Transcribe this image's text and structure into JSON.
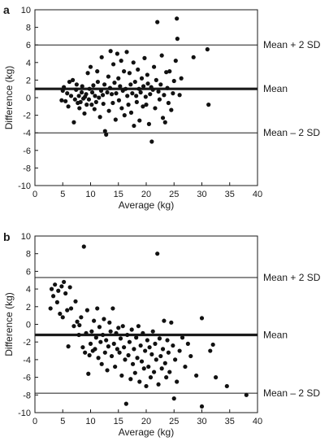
{
  "chart_data": [
    {
      "type": "scatter",
      "panel_label": "a",
      "xlabel": "Average (kg)",
      "ylabel": "Difference (kg)",
      "xlim": [
        0,
        40
      ],
      "ylim": [
        -10,
        10
      ],
      "xticks": [
        0,
        5,
        10,
        15,
        20,
        25,
        30,
        35,
        40
      ],
      "yticks": [
        -10,
        -8,
        -6,
        -4,
        -2,
        0,
        2,
        4,
        6,
        8,
        10
      ],
      "reference_lines": [
        {
          "label": "Mean + 2 SD",
          "y": 6.0,
          "style": "thin"
        },
        {
          "label": "Mean",
          "y": 1.0,
          "style": "thick"
        },
        {
          "label": "Mean – 2 SD",
          "y": -4.0,
          "style": "thin"
        }
      ],
      "points": [
        [
          4.8,
          -0.3
        ],
        [
          5.0,
          0.8
        ],
        [
          5.2,
          1.2
        ],
        [
          5.5,
          -0.4
        ],
        [
          5.8,
          0.5
        ],
        [
          6.0,
          -1.0
        ],
        [
          6.2,
          1.8
        ],
        [
          6.5,
          0.2
        ],
        [
          6.8,
          2.0
        ],
        [
          7.0,
          -2.8
        ],
        [
          7.2,
          -0.2
        ],
        [
          7.4,
          0.9
        ],
        [
          7.5,
          1.5
        ],
        [
          7.7,
          -0.6
        ],
        [
          7.9,
          0.2
        ],
        [
          8.0,
          -1.2
        ],
        [
          8.2,
          -0.5
        ],
        [
          8.4,
          0.6
        ],
        [
          8.5,
          1.3
        ],
        [
          8.7,
          -0.1
        ],
        [
          8.9,
          -1.8
        ],
        [
          9.0,
          0.1
        ],
        [
          9.2,
          0.4
        ],
        [
          9.3,
          -0.8
        ],
        [
          9.5,
          2.8
        ],
        [
          9.7,
          -0.2
        ],
        [
          9.8,
          1.0
        ],
        [
          10.0,
          3.5
        ],
        [
          10.2,
          -0.8
        ],
        [
          10.3,
          0.6
        ],
        [
          10.5,
          1.4
        ],
        [
          10.7,
          -1.3
        ],
        [
          10.8,
          0.2
        ],
        [
          11.0,
          -0.5
        ],
        [
          11.2,
          3.0
        ],
        [
          11.3,
          1.8
        ],
        [
          11.5,
          0.0
        ],
        [
          11.7,
          -2.2
        ],
        [
          11.9,
          0.8
        ],
        [
          12.0,
          4.6
        ],
        [
          12.2,
          0.3
        ],
        [
          12.3,
          -0.7
        ],
        [
          12.5,
          1.5
        ],
        [
          12.6,
          -3.8
        ],
        [
          12.8,
          -4.2
        ],
        [
          13.0,
          0.6
        ],
        [
          13.2,
          2.4
        ],
        [
          13.3,
          -1.5
        ],
        [
          13.5,
          1.1
        ],
        [
          13.6,
          5.3
        ],
        [
          13.8,
          0.4
        ],
        [
          14.0,
          -0.6
        ],
        [
          14.1,
          3.8
        ],
        [
          14.3,
          1.7
        ],
        [
          14.5,
          -2.5
        ],
        [
          14.6,
          0.5
        ],
        [
          14.8,
          5.0
        ],
        [
          15.0,
          2.2
        ],
        [
          15.1,
          -0.3
        ],
        [
          15.3,
          1.3
        ],
        [
          15.5,
          4.2
        ],
        [
          15.6,
          -1.2
        ],
        [
          15.8,
          0.8
        ],
        [
          16.0,
          3.0
        ],
        [
          16.1,
          -2.0
        ],
        [
          16.3,
          1.0
        ],
        [
          16.5,
          5.2
        ],
        [
          16.6,
          0.2
        ],
        [
          16.8,
          -0.8
        ],
        [
          17.0,
          2.8
        ],
        [
          17.2,
          1.5
        ],
        [
          17.3,
          -1.7
        ],
        [
          17.5,
          0.5
        ],
        [
          17.7,
          4.0
        ],
        [
          17.8,
          -3.2
        ],
        [
          18.0,
          1.8
        ],
        [
          18.2,
          0.2
        ],
        [
          18.3,
          -0.5
        ],
        [
          18.5,
          3.2
        ],
        [
          18.7,
          1.0
        ],
        [
          18.8,
          -2.6
        ],
        [
          19.0,
          0.6
        ],
        [
          19.2,
          2.2
        ],
        [
          19.4,
          -1.0
        ],
        [
          19.5,
          1.3
        ],
        [
          19.7,
          4.5
        ],
        [
          19.9,
          0.1
        ],
        [
          20.0,
          -0.8
        ],
        [
          20.2,
          2.6
        ],
        [
          20.3,
          1.6
        ],
        [
          20.5,
          -3.0
        ],
        [
          20.7,
          0.4
        ],
        [
          20.9,
          1.2
        ],
        [
          21.0,
          -5.0
        ],
        [
          21.2,
          0.9
        ],
        [
          21.4,
          3.5
        ],
        [
          21.6,
          -1.2
        ],
        [
          21.8,
          2.0
        ],
        [
          22.0,
          8.6
        ],
        [
          22.2,
          0.7
        ],
        [
          22.4,
          -0.2
        ],
        [
          22.6,
          1.5
        ],
        [
          22.8,
          4.8
        ],
        [
          23.0,
          -2.3
        ],
        [
          23.2,
          0.3
        ],
        [
          23.4,
          -2.8
        ],
        [
          23.6,
          2.9
        ],
        [
          23.8,
          1.1
        ],
        [
          24.0,
          -0.6
        ],
        [
          24.2,
          3.0
        ],
        [
          24.5,
          -1.4
        ],
        [
          24.8,
          0.5
        ],
        [
          25.0,
          1.9
        ],
        [
          25.3,
          4.2
        ],
        [
          25.5,
          9.0
        ],
        [
          25.6,
          6.7
        ],
        [
          26.0,
          0.3
        ],
        [
          26.3,
          2.2
        ],
        [
          28.5,
          4.6
        ],
        [
          31.0,
          5.5
        ],
        [
          31.2,
          -0.8
        ]
      ]
    },
    {
      "type": "scatter",
      "panel_label": "b",
      "xlabel": "Average (kg)",
      "ylabel": "Difference (kg)",
      "xlim": [
        0,
        40
      ],
      "ylim": [
        -10,
        10
      ],
      "xticks": [
        0,
        5,
        10,
        15,
        20,
        25,
        30,
        35,
        40
      ],
      "yticks": [
        -10,
        -8,
        -6,
        -4,
        -2,
        0,
        2,
        4,
        6,
        8,
        10
      ],
      "reference_lines": [
        {
          "label": "Mean + 2 SD",
          "y": 5.3,
          "style": "thin"
        },
        {
          "label": "Mean",
          "y": -1.2,
          "style": "thick"
        },
        {
          "label": "Mean – 2 SD",
          "y": -7.8,
          "style": "thin"
        }
      ],
      "points": [
        [
          2.8,
          1.8
        ],
        [
          3.0,
          4.0
        ],
        [
          3.3,
          3.2
        ],
        [
          3.6,
          4.5
        ],
        [
          4.0,
          2.5
        ],
        [
          4.2,
          3.8
        ],
        [
          4.5,
          1.2
        ],
        [
          4.8,
          4.3
        ],
        [
          5.0,
          0.8
        ],
        [
          5.2,
          4.8
        ],
        [
          5.5,
          3.5
        ],
        [
          5.8,
          1.6
        ],
        [
          6.0,
          -2.5
        ],
        [
          6.3,
          4.2
        ],
        [
          6.5,
          1.8
        ],
        [
          7.0,
          -0.2
        ],
        [
          7.3,
          2.6
        ],
        [
          7.6,
          0.3
        ],
        [
          7.9,
          -1.2
        ],
        [
          8.0,
          -0.1
        ],
        [
          8.3,
          0.8
        ],
        [
          8.6,
          -2.6
        ],
        [
          8.8,
          8.8
        ],
        [
          9.0,
          -3.2
        ],
        [
          9.2,
          -1.0
        ],
        [
          9.4,
          1.6
        ],
        [
          9.6,
          -5.6
        ],
        [
          9.8,
          -3.5
        ],
        [
          10.0,
          -2.2
        ],
        [
          10.2,
          -0.8
        ],
        [
          10.4,
          -3.0
        ],
        [
          10.6,
          0.4
        ],
        [
          10.8,
          -2.8
        ],
        [
          11.0,
          -1.5
        ],
        [
          11.2,
          1.8
        ],
        [
          11.4,
          -3.8
        ],
        [
          11.6,
          -0.3
        ],
        [
          11.8,
          -2.0
        ],
        [
          12.0,
          -4.5
        ],
        [
          12.2,
          -1.2
        ],
        [
          12.4,
          0.6
        ],
        [
          12.6,
          -3.2
        ],
        [
          12.8,
          -1.8
        ],
        [
          13.0,
          -5.2
        ],
        [
          13.2,
          -2.5
        ],
        [
          13.4,
          0.2
        ],
        [
          13.6,
          -0.8
        ],
        [
          13.8,
          -3.6
        ],
        [
          14.0,
          1.8
        ],
        [
          14.2,
          -2.2
        ],
        [
          14.4,
          -4.8
        ],
        [
          14.6,
          -1.0
        ],
        [
          14.8,
          -2.8
        ],
        [
          15.0,
          -0.4
        ],
        [
          15.2,
          -3.2
        ],
        [
          15.4,
          -1.6
        ],
        [
          15.6,
          -5.8
        ],
        [
          15.8,
          -0.2
        ],
        [
          16.0,
          -2.6
        ],
        [
          16.2,
          -4.0
        ],
        [
          16.4,
          -9.0
        ],
        [
          16.6,
          -1.2
        ],
        [
          16.8,
          -3.5
        ],
        [
          17.0,
          -2.0
        ],
        [
          17.2,
          -6.2
        ],
        [
          17.4,
          -0.6
        ],
        [
          17.6,
          -4.5
        ],
        [
          17.8,
          -2.8
        ],
        [
          18.0,
          -5.5
        ],
        [
          18.2,
          -1.5
        ],
        [
          18.4,
          -3.8
        ],
        [
          18.6,
          -0.2
        ],
        [
          18.8,
          -6.5
        ],
        [
          19.0,
          -2.4
        ],
        [
          19.2,
          -4.2
        ],
        [
          19.4,
          -1.0
        ],
        [
          19.6,
          -5.0
        ],
        [
          19.8,
          -3.0
        ],
        [
          20.0,
          -7.0
        ],
        [
          20.2,
          -1.8
        ],
        [
          20.4,
          -4.8
        ],
        [
          20.6,
          -2.6
        ],
        [
          20.8,
          -6.0
        ],
        [
          21.0,
          -3.4
        ],
        [
          21.2,
          -0.8
        ],
        [
          21.4,
          -5.4
        ],
        [
          21.6,
          -2.2
        ],
        [
          21.8,
          -4.0
        ],
        [
          22.0,
          8.0
        ],
        [
          22.2,
          -6.8
        ],
        [
          22.4,
          -1.6
        ],
        [
          22.6,
          -3.6
        ],
        [
          22.8,
          -5.0
        ],
        [
          23.0,
          -2.8
        ],
        [
          23.2,
          0.4
        ],
        [
          23.4,
          -4.4
        ],
        [
          23.6,
          -6.0
        ],
        [
          23.8,
          -1.8
        ],
        [
          24.0,
          -3.2
        ],
        [
          24.2,
          -5.4
        ],
        [
          24.5,
          0.2
        ],
        [
          24.8,
          -2.4
        ],
        [
          25.0,
          -8.4
        ],
        [
          25.2,
          -4.0
        ],
        [
          25.5,
          -6.5
        ],
        [
          26.0,
          -3.0
        ],
        [
          26.5,
          -1.5
        ],
        [
          27.0,
          -4.8
        ],
        [
          27.5,
          -2.2
        ],
        [
          28.0,
          -3.6
        ],
        [
          29.0,
          -5.8
        ],
        [
          30.0,
          -9.3
        ],
        [
          30.0,
          0.7
        ],
        [
          31.5,
          -3.0
        ],
        [
          32.0,
          -2.3
        ],
        [
          32.5,
          -6.0
        ],
        [
          34.5,
          -7.0
        ],
        [
          38.0,
          -8.0
        ]
      ]
    }
  ]
}
